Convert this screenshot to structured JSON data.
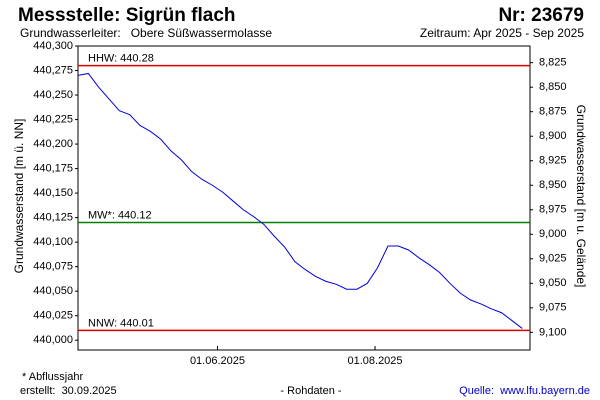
{
  "chart_data": {
    "type": "line",
    "title": "Messstelle: Sigrün flach",
    "id_label": "Nr: 23679",
    "subtitle": "Grundwasserleiter:   Obere Süßwassermolasse",
    "period": "Zeitraum: Apr 2025 - Sep 2025",
    "ylabel": "Grundwasserstand [m ü. NN]",
    "y2label": "Grundwasserstand [m u. Gelände]",
    "x": [
      "2025-04-08",
      "2025-04-12",
      "2025-04-16",
      "2025-04-20",
      "2025-04-24",
      "2025-04-28",
      "2025-05-02",
      "2025-05-06",
      "2025-05-10",
      "2025-05-14",
      "2025-05-18",
      "2025-05-22",
      "2025-05-26",
      "2025-05-30",
      "2025-06-03",
      "2025-06-07",
      "2025-06-11",
      "2025-06-15",
      "2025-06-19",
      "2025-06-23",
      "2025-06-27",
      "2025-07-01",
      "2025-07-05",
      "2025-07-09",
      "2025-07-13",
      "2025-07-17",
      "2025-07-21",
      "2025-07-25",
      "2025-07-29",
      "2025-08-02",
      "2025-08-06",
      "2025-08-10",
      "2025-08-14",
      "2025-08-18",
      "2025-08-22",
      "2025-08-26",
      "2025-08-30",
      "2025-09-03",
      "2025-09-07",
      "2025-09-11",
      "2025-09-15",
      "2025-09-19",
      "2025-09-23",
      "2025-09-27"
    ],
    "series": [
      {
        "color": "#0000dd",
        "values": [
          440.27,
          440.272,
          440.258,
          440.246,
          440.234,
          440.23,
          440.219,
          440.213,
          440.205,
          440.193,
          440.184,
          440.172,
          440.164,
          440.158,
          440.151,
          440.142,
          440.133,
          440.126,
          440.118,
          440.106,
          440.095,
          440.08,
          440.072,
          440.065,
          440.06,
          440.057,
          440.052,
          440.052,
          440.058,
          440.074,
          440.096,
          440.096,
          440.092,
          440.084,
          440.077,
          440.069,
          440.058,
          440.048,
          440.041,
          440.037,
          440.032,
          440.028,
          440.02,
          440.012
        ]
      }
    ],
    "reference_lines": [
      {
        "value": 440.28,
        "label": "HHW: 440.28",
        "color": "#dd0000"
      },
      {
        "value": 440.12,
        "label": "MW*: 440.12",
        "color": "#008000"
      },
      {
        "value": 440.01,
        "label": "NNW: 440.01",
        "color": "#dd0000"
      }
    ],
    "xlim": [
      "2025-04-08",
      "2025-09-30"
    ],
    "xticks": [
      {
        "value": "2025-06-01",
        "label": "01.06.2025"
      },
      {
        "value": "2025-08-01",
        "label": "01.08.2025"
      }
    ],
    "ylim": [
      439.99,
      440.3
    ],
    "yticks": [
      {
        "value": 440.0,
        "label": "440,000"
      },
      {
        "value": 440.025,
        "label": "440,025"
      },
      {
        "value": 440.05,
        "label": "440,050"
      },
      {
        "value": 440.075,
        "label": "440,075"
      },
      {
        "value": 440.1,
        "label": "440,100"
      },
      {
        "value": 440.125,
        "label": "440,125"
      },
      {
        "value": 440.15,
        "label": "440,150"
      },
      {
        "value": 440.175,
        "label": "440,175"
      },
      {
        "value": 440.2,
        "label": "440,200"
      },
      {
        "value": 440.225,
        "label": "440,225"
      },
      {
        "value": 440.25,
        "label": "440,250"
      },
      {
        "value": 440.275,
        "label": "440,275"
      },
      {
        "value": 440.3,
        "label": "440,300"
      }
    ],
    "y2lim": [
      9.118,
      8.808
    ],
    "y2ticks": [
      {
        "value": 8.825,
        "label": "8,825"
      },
      {
        "value": 8.85,
        "label": "8,850"
      },
      {
        "value": 8.875,
        "label": "8,875"
      },
      {
        "value": 8.9,
        "label": "8,900"
      },
      {
        "value": 8.925,
        "label": "8,925"
      },
      {
        "value": 8.95,
        "label": "8,950"
      },
      {
        "value": 8.975,
        "label": "8,975"
      },
      {
        "value": 9.0,
        "label": "9,000"
      },
      {
        "value": 9.025,
        "label": "9,025"
      },
      {
        "value": 9.05,
        "label": "9,050"
      },
      {
        "value": 9.075,
        "label": "9,075"
      },
      {
        "value": 9.1,
        "label": "9,100"
      }
    ],
    "footnote": "* Abflussjahr",
    "created": "erstellt:  30.09.2025",
    "note": "- Rohdaten -",
    "source": "Quelle:  www.lfu.bayern.de"
  }
}
